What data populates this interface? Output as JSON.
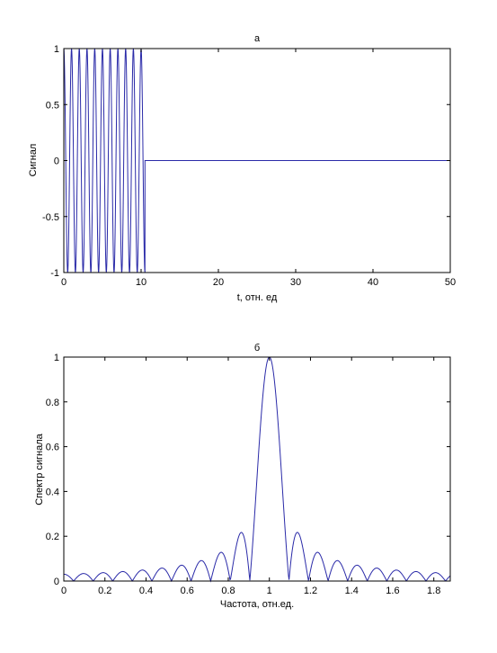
{
  "chart_data": [
    {
      "type": "line",
      "title": "а",
      "xlabel": "t, отн. ед",
      "ylabel": "Сигнал",
      "xlim": [
        0,
        50
      ],
      "ylim": [
        -1,
        1
      ],
      "xticks": [
        0,
        10,
        20,
        30,
        40,
        50
      ],
      "yticks": [
        -1,
        -0.5,
        0,
        0.5,
        1
      ],
      "xtick_labels": [
        "0",
        "10",
        "20",
        "30",
        "40",
        "50"
      ],
      "ytick_labels": [
        "-1",
        "-0.5",
        "0",
        "0.5",
        "1"
      ],
      "grid": false,
      "series": [
        {
          "color": "#2a2aa8",
          "description": "cosine burst cos(2π·t), unit amplitude, for t from 0 to 10.5, then zero to t = 50",
          "x": [
            0,
            0.5,
            1,
            1.5,
            2,
            2.5,
            3,
            3.5,
            4,
            4.5,
            5,
            5.5,
            6,
            6.5,
            7,
            7.5,
            8,
            8.5,
            9,
            9.5,
            10,
            10.5,
            10.5,
            50
          ],
          "y": [
            1,
            -1,
            1,
            -1,
            1,
            -1,
            1,
            -1,
            1,
            -1,
            1,
            -1,
            1,
            -1,
            1,
            -1,
            1,
            -1,
            1,
            -1,
            1,
            -1,
            0,
            0
          ]
        }
      ]
    },
    {
      "type": "line",
      "title": "б",
      "xlabel": "Частота, отн.ед.",
      "ylabel": "Спектр сигнала",
      "xlim": [
        0,
        1.88
      ],
      "ylim": [
        0,
        1
      ],
      "xticks": [
        0,
        0.2,
        0.4,
        0.6,
        0.8,
        1,
        1.2,
        1.4,
        1.6,
        1.8
      ],
      "yticks": [
        0,
        0.2,
        0.4,
        0.6,
        0.8,
        1
      ],
      "xtick_labels": [
        "0",
        "0.2",
        "0.4",
        "0.6",
        "0.8",
        "1",
        "1.2",
        "1.4",
        "1.6",
        "1.8"
      ],
      "ytick_labels": [
        "0",
        "0.2",
        "0.4",
        "0.6",
        "0.8",
        "1"
      ],
      "grid": false,
      "series": [
        {
          "color": "#2a2aa8",
          "description": "normalized magnitude spectrum |sinc(10.5·(f − 1))|, main lobe peak 1 at f = 1, zeros spaced ~0.095",
          "main_lobe_center": 1,
          "x": [
            0,
            0.05,
            0.095,
            0.145,
            0.19,
            0.24,
            0.285,
            0.335,
            0.38,
            0.43,
            0.475,
            0.525,
            0.57,
            0.62,
            0.665,
            0.715,
            0.76,
            0.81,
            0.857,
            0.88,
            0.905,
            0.95,
            1,
            1.048,
            1.095,
            1.12,
            1.143,
            1.19,
            1.238,
            1.285,
            1.333,
            1.38,
            1.43,
            1.475,
            1.525,
            1.57,
            1.62,
            1.665,
            1.715,
            1.76,
            1.81,
            1.857,
            1.88
          ],
          "y": [
            0.03,
            0.06,
            0,
            0.065,
            0,
            0.07,
            0,
            0.08,
            0,
            0.085,
            0,
            0.095,
            0,
            0.11,
            0,
            0.13,
            0,
            0.17,
            0,
            0.23,
            0,
            0.64,
            1,
            0.64,
            0,
            0.2,
            0,
            0.13,
            0,
            0.11,
            0,
            0.08,
            0,
            0.065,
            0,
            0.055,
            0,
            0.045,
            0,
            0.035,
            0,
            0.03,
            0.02
          ]
        }
      ]
    }
  ]
}
